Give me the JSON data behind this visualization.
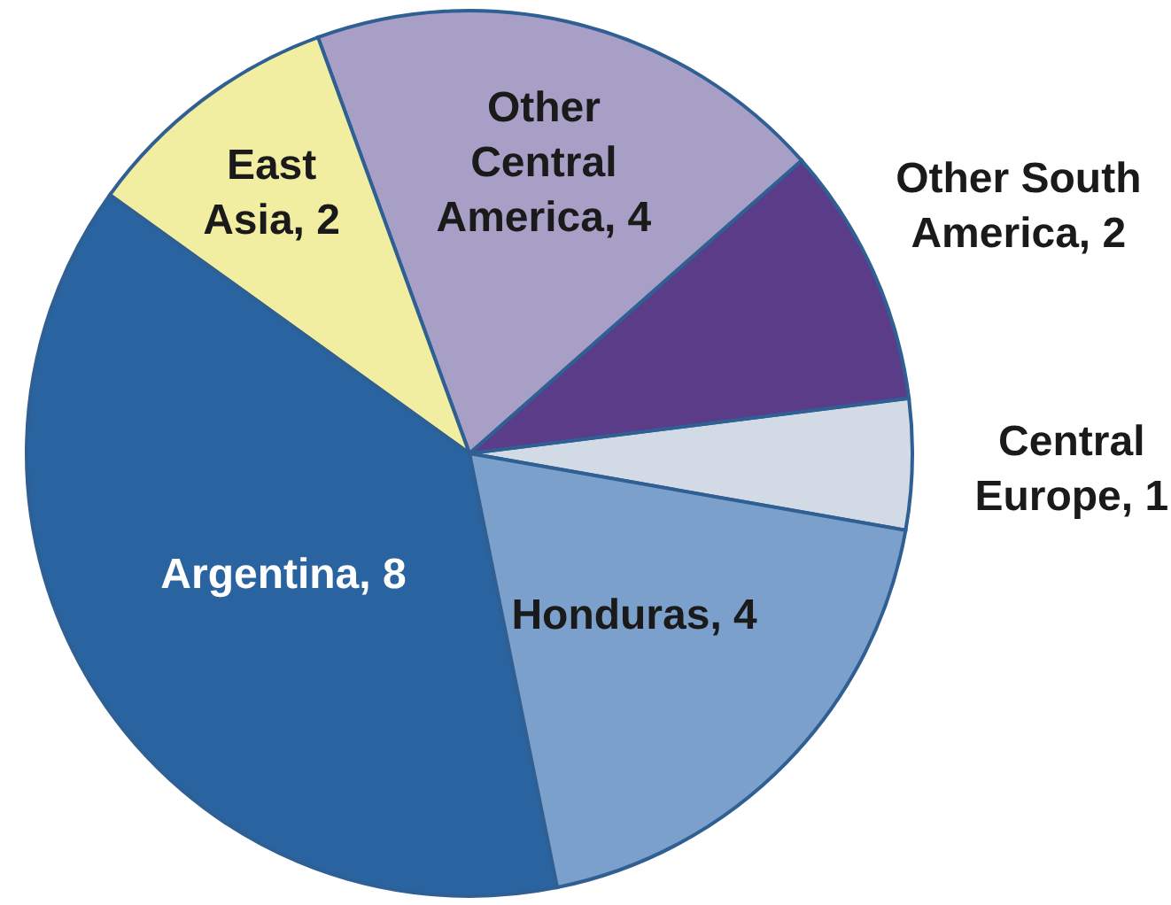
{
  "chart_data": {
    "type": "pie",
    "categories": [
      "Central Europe, 1",
      "Other South America, 2",
      "Other Central America, 4",
      "East Asia, 2",
      "Argentina, 8",
      "Honduras, 4"
    ],
    "values": [
      1,
      2,
      4,
      2,
      8,
      4
    ],
    "colors": [
      "#d2dae6",
      "#5b3c88",
      "#a89fc6",
      "#f1eea2",
      "#2964a0",
      "#7ba0cb"
    ]
  }
}
